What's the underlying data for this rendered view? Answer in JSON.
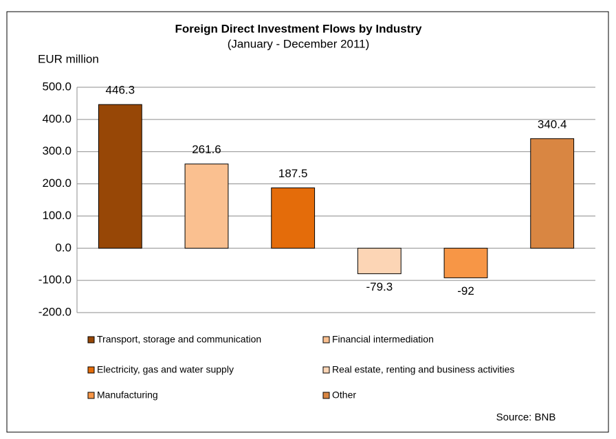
{
  "chart_data": {
    "type": "bar",
    "title": "Foreign Direct Investment Flows by Industry",
    "subtitle": "(January - December 2011)",
    "y_label": "EUR million",
    "source": "Source: BNB",
    "categories": [
      null
    ],
    "series": [
      {
        "name": "Transport, storage and communication",
        "color": "#974706",
        "values": [
          446.3
        ]
      },
      {
        "name": "Financial intermediation",
        "color": "#FAC090",
        "values": [
          261.6
        ]
      },
      {
        "name": "Electricity, gas and water supply",
        "color": "#E46C0A",
        "values": [
          187.5
        ]
      },
      {
        "name": "Real estate, renting and business activities",
        "color": "#FCD5B5",
        "values": [
          -79.3
        ]
      },
      {
        "name": "Manufacturing",
        "color": "#F79646",
        "values": [
          -92.0
        ]
      },
      {
        "name": "Other",
        "color": "#D98642",
        "values": [
          340.4
        ]
      }
    ],
    "ylim": [
      -200,
      500
    ],
    "yticks": [
      {
        "value": -200,
        "label": "-200.0"
      },
      {
        "value": -100,
        "label": "-100.0"
      },
      {
        "value": 0,
        "label": "0.0"
      },
      {
        "value": 100,
        "label": "100.0"
      },
      {
        "value": 200,
        "label": "200.0"
      },
      {
        "value": 300,
        "label": "300.0"
      },
      {
        "value": 400,
        "label": "400.0"
      },
      {
        "value": 500,
        "label": "500.0"
      }
    ],
    "grid": true
  }
}
